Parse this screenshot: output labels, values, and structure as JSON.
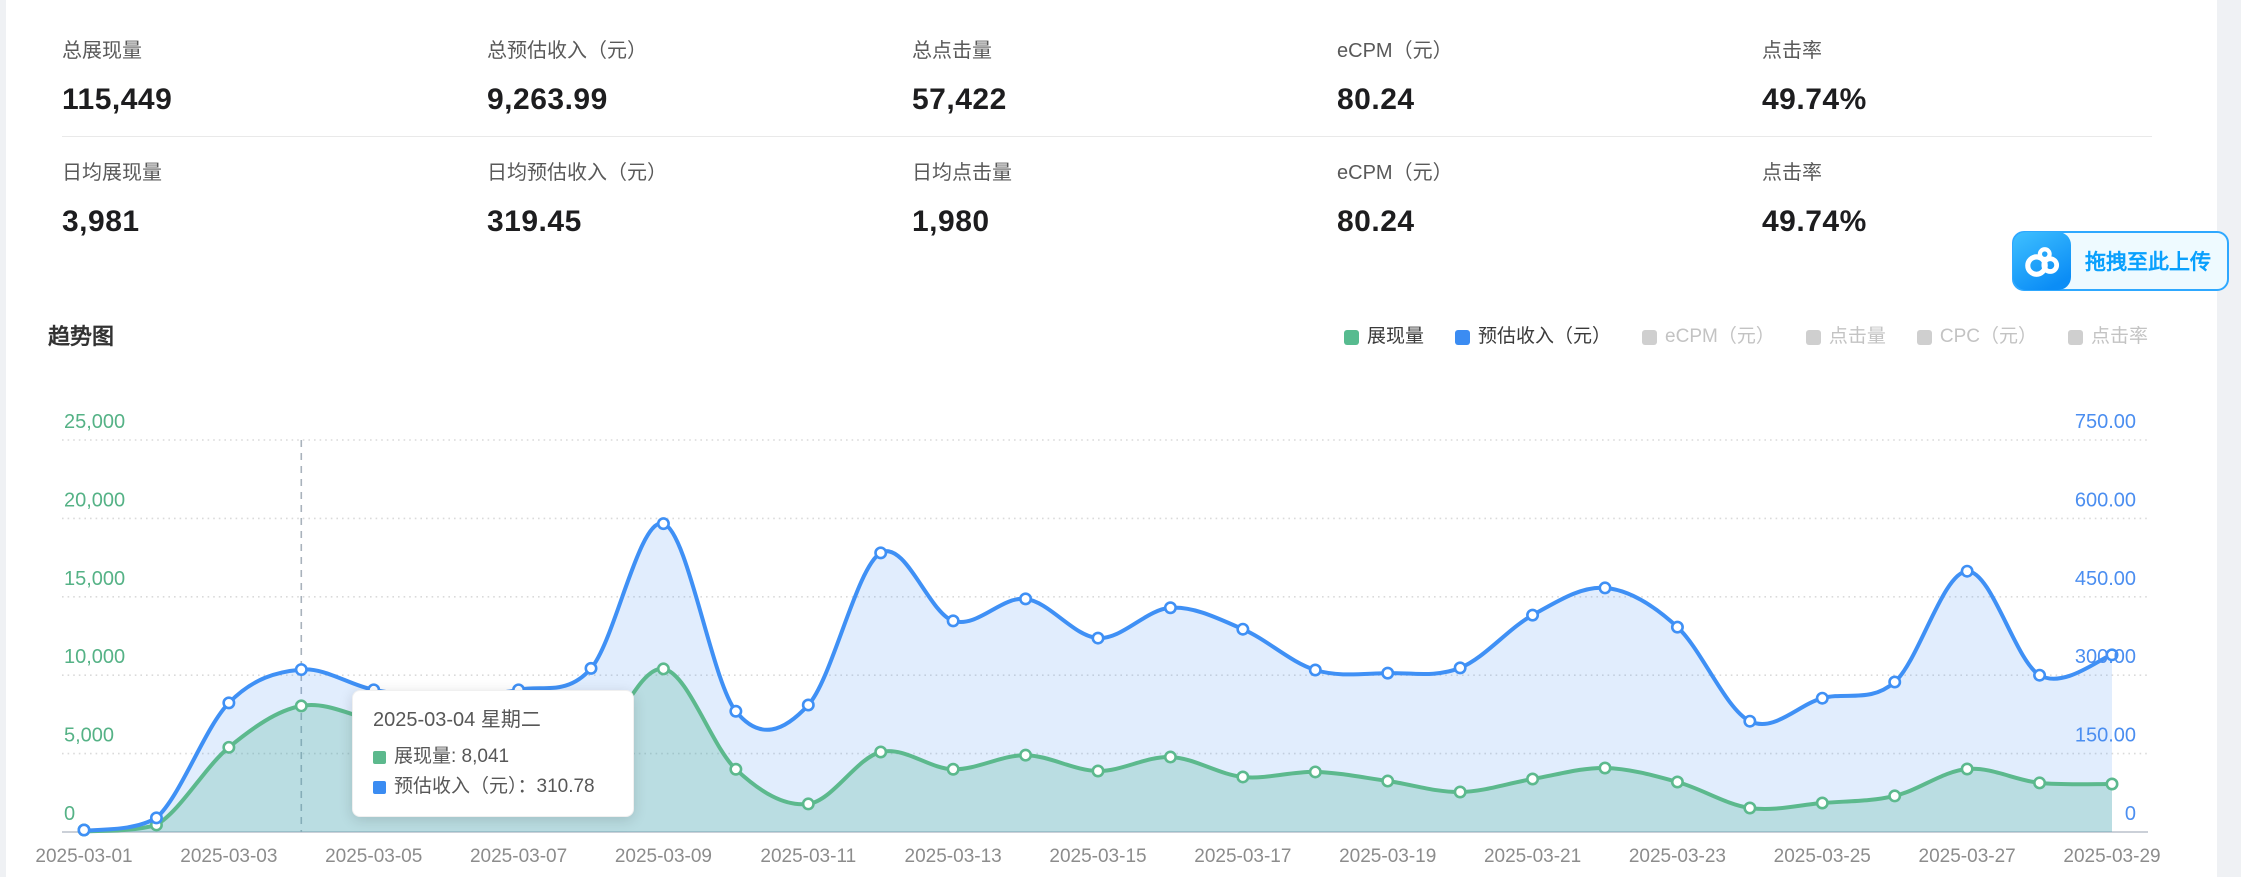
{
  "stats": {
    "rows": [
      {
        "cells": [
          {
            "key": "total-impressions",
            "label": "总展现量",
            "value": "115,449"
          },
          {
            "key": "total-est-revenue",
            "label": "总预估收入（元）",
            "value": "9,263.99"
          },
          {
            "key": "total-clicks",
            "label": "总点击量",
            "value": "57,422"
          },
          {
            "key": "ecpm",
            "label": "eCPM（元）",
            "value": "80.24"
          },
          {
            "key": "ctr",
            "label": "点击率",
            "value": "49.74%"
          }
        ]
      },
      {
        "cells": [
          {
            "key": "daily-avg-impressions",
            "label": "日均展现量",
            "value": "3,981"
          },
          {
            "key": "daily-avg-est-revenue",
            "label": "日均预估收入（元）",
            "value": "319.45"
          },
          {
            "key": "daily-avg-clicks",
            "label": "日均点击量",
            "value": "1,980"
          },
          {
            "key": "ecpm",
            "label": "eCPM（元）",
            "value": "80.24"
          },
          {
            "key": "ctr",
            "label": "点击率",
            "value": "49.74%"
          }
        ]
      }
    ]
  },
  "upload": {
    "label": "拖拽至此上传",
    "icon": "baidu-netdisk-cloud-icon",
    "accent": "#09a0fd"
  },
  "chart_section": {
    "title": "趋势图"
  },
  "legend": [
    {
      "key": "impressions",
      "label": "展现量",
      "color": "#57bb8f",
      "enabled": true
    },
    {
      "key": "est-revenue",
      "label": "预估收入（元）",
      "color": "#3b8cf2",
      "enabled": true
    },
    {
      "key": "ecpm",
      "label": "eCPM（元）",
      "color": "#cfcfcf",
      "enabled": false
    },
    {
      "key": "clicks",
      "label": "点击量",
      "color": "#cfcfcf",
      "enabled": false
    },
    {
      "key": "cpc",
      "label": "CPC（元）",
      "color": "#cfcfcf",
      "enabled": false
    },
    {
      "key": "ctr",
      "label": "点击率",
      "color": "#cfcfcf",
      "enabled": false
    }
  ],
  "chart_data": {
    "type": "line",
    "smooth": true,
    "grid": "dotted-horizontal",
    "x": [
      "2025-03-01",
      "2025-03-02",
      "2025-03-03",
      "2025-03-04",
      "2025-03-05",
      "2025-03-06",
      "2025-03-07",
      "2025-03-08",
      "2025-03-09",
      "2025-03-10",
      "2025-03-11",
      "2025-03-12",
      "2025-03-13",
      "2025-03-14",
      "2025-03-15",
      "2025-03-16",
      "2025-03-17",
      "2025-03-18",
      "2025-03-19",
      "2025-03-20",
      "2025-03-21",
      "2025-03-22",
      "2025-03-23",
      "2025-03-24",
      "2025-03-25",
      "2025-03-26",
      "2025-03-27",
      "2025-03-28",
      "2025-03-29"
    ],
    "x_label_every": 2,
    "x_label_color": "#8c8c8c",
    "series": [
      {
        "name": "展现量",
        "axis": "left",
        "color": "#5cb98d",
        "area": "rgba(76,182,131,0.26)",
        "values": [
          30,
          450,
          5400,
          8041,
          7100,
          5800,
          4800,
          5300,
          10400,
          4000,
          1790,
          5100,
          4000,
          4900,
          3890,
          4780,
          3510,
          3830,
          3250,
          2550,
          3380,
          4080,
          3190,
          1530,
          1850,
          2300,
          4020,
          3130,
          3060
        ]
      },
      {
        "name": "预估收入（元）",
        "axis": "right",
        "color": "#3f90f5",
        "area": "rgba(80,150,242,0.17)",
        "values": [
          2,
          27,
          247,
          310.78,
          272,
          258,
          272,
          313,
          590,
          231,
          243,
          534,
          404,
          446,
          371,
          429,
          388,
          310,
          304,
          314,
          415,
          467,
          392,
          212,
          256,
          287,
          499,
          300,
          339
        ]
      }
    ],
    "left_axis": {
      "min": 0,
      "max": 25000,
      "ticks": [
        "0",
        "5,000",
        "10,000",
        "15,000",
        "20,000",
        "25,000"
      ],
      "color": "#55b286"
    },
    "right_axis": {
      "min": 0,
      "max": 750,
      "ticks": [
        "0",
        "150.00",
        "300.00",
        "450.00",
        "600.00",
        "750.00"
      ],
      "color": "#4b8ef0"
    },
    "tooltip": {
      "date": "2025-03-04 星期二",
      "day_index": 3,
      "rows": [
        {
          "label": "展现量",
          "sep": ": ",
          "value": "8,041",
          "color": "#5cb98d"
        },
        {
          "label": "预估收入（元）",
          "sep": "：",
          "value": "310.78",
          "color": "#3b8cf2"
        }
      ]
    }
  }
}
